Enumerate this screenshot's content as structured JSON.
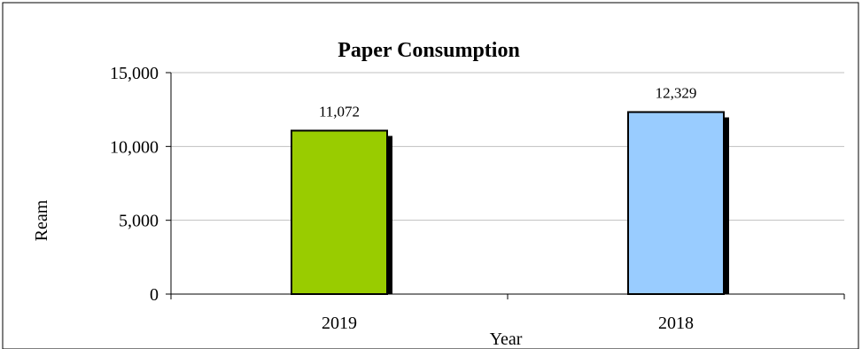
{
  "chart_data": {
    "type": "bar",
    "title": "Paper Consumption",
    "xlabel": "Year",
    "ylabel": "Ream",
    "categories": [
      "2019",
      "2018"
    ],
    "values": [
      11072,
      12329
    ],
    "data_labels": [
      "11,072",
      "12,329"
    ],
    "ylim": [
      0,
      15000
    ],
    "yticks": [
      0,
      5000,
      10000,
      15000
    ],
    "ytick_labels": [
      "0",
      "5,000",
      "10,000",
      "15,000"
    ],
    "grid": true,
    "legend": "none",
    "bar_colors": [
      "#99cc00",
      "#99ccff"
    ],
    "shadow_color": "#000000",
    "grid_color": "#c0c0c0",
    "axis_color": "#000000"
  }
}
